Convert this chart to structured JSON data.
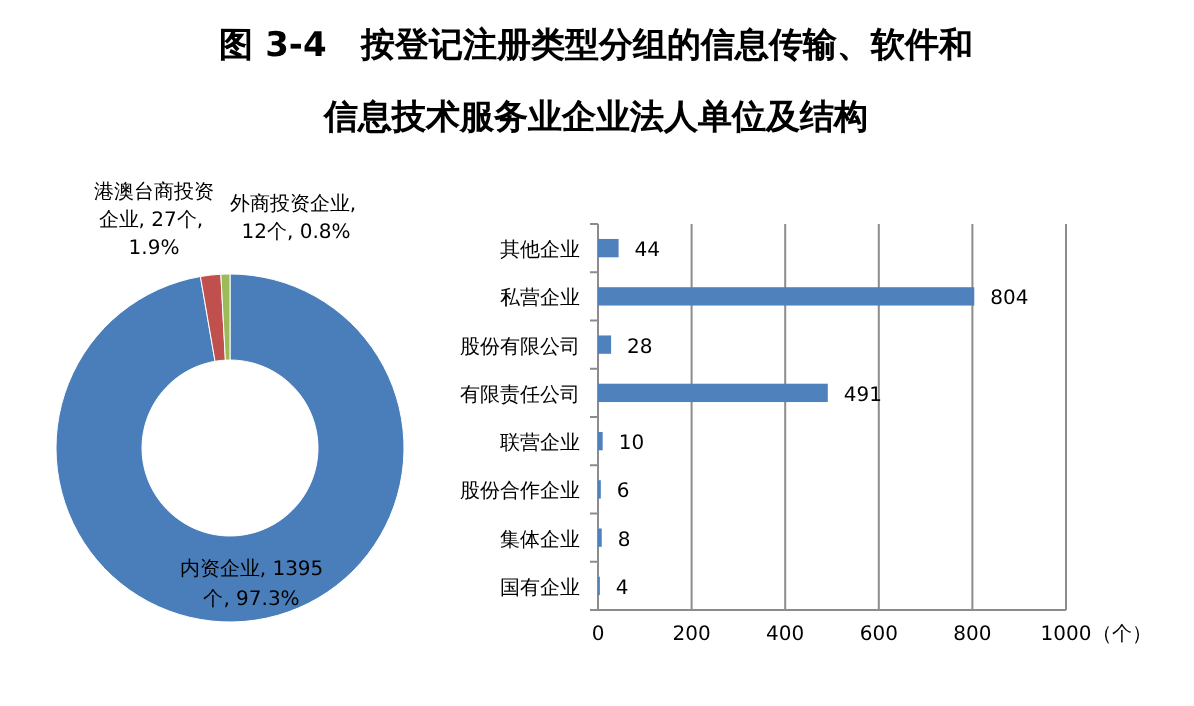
{
  "chart_data": [
    {
      "type": "donut",
      "title": "图 3-4　按登记注册类型分组的信息传输、软件和信息技术服务业企业法人单位及结构",
      "categories": [
        "内资企业",
        "港澳台商投资企业",
        "外商投资企业"
      ],
      "values": [
        1395,
        27,
        12
      ],
      "value_labels": [
        ", 1395个, 97.3%",
        ", 27个, 1.9%",
        ", 12个, 0.8%"
      ],
      "colors": [
        "#4a7ebb",
        "#c0504d",
        "#9bbb59"
      ]
    },
    {
      "type": "bar",
      "orientation": "horizontal",
      "xlabel": "（个）",
      "categories": [
        "其他企业",
        "私营企业",
        "股份有限公司",
        "有限责任公司",
        "联营企业",
        "股份合作企业",
        "集体企业",
        "国有企业"
      ],
      "values": [
        44,
        804,
        28,
        491,
        10,
        6,
        8,
        4
      ],
      "color": "#4f81bd",
      "xlim": [
        0,
        1000
      ],
      "xticks": [
        0,
        200,
        400,
        600,
        800,
        1000
      ],
      "grid": "x",
      "data_labels": true
    }
  ]
}
